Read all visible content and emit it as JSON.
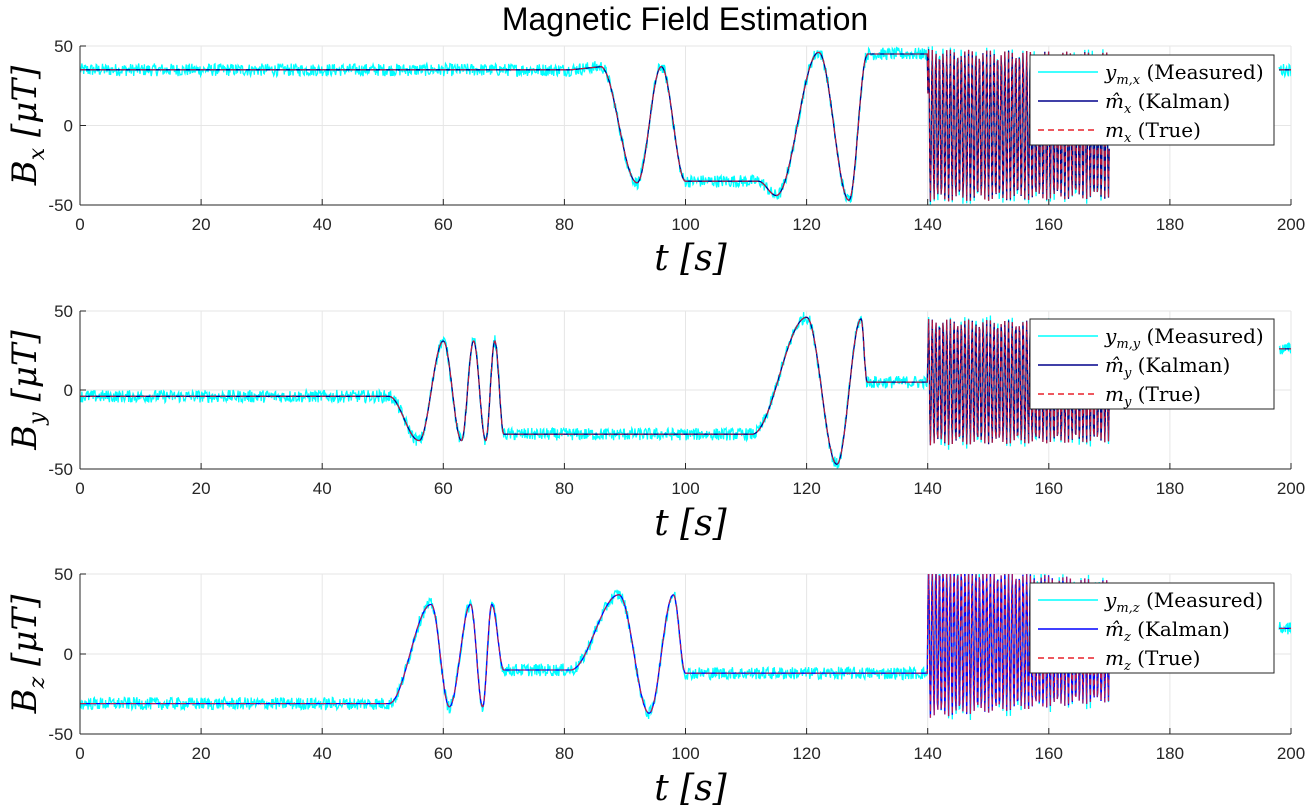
{
  "figure": {
    "title": "Magnetic Field Estimation"
  },
  "colors": {
    "measured": "#00ffff",
    "kalman": "#00008b",
    "true": "#e8202a",
    "grid": "#e6e6e6",
    "axis": "#262626"
  },
  "chart_data": [
    {
      "type": "line",
      "xlabel": "t [s]",
      "ylabel": "B_x [μT]",
      "xlim": [
        0,
        200
      ],
      "ylim": [
        -50,
        50
      ],
      "xticks": [
        0,
        20,
        40,
        60,
        80,
        100,
        120,
        140,
        160,
        180,
        200
      ],
      "yticks": [
        -50,
        0,
        50
      ],
      "grid": true,
      "legend_position": "top-right",
      "legend": [
        {
          "sym": "y",
          "sub": "m,x",
          "label": "(Measured)",
          "style": "cyan-solid"
        },
        {
          "sym": "m̂",
          "sub": "x",
          "label": "(Kalman)",
          "style": "navy-solid"
        },
        {
          "sym": "m",
          "sub": "x",
          "label": "(True)",
          "style": "red-dashed"
        }
      ],
      "series": [
        {
          "name": "y_m,x (Measured)",
          "noise_amplitude": 4,
          "segments": [
            {
              "type": "const",
              "x": [
                0,
                81
              ],
              "value": 35
            },
            {
              "type": "ramp",
              "x": [
                81,
                86
              ],
              "from": 35,
              "to": 37
            },
            {
              "type": "wave",
              "x": [
                86,
                100
              ],
              "points": [
                [
                  86,
                  37
                ],
                [
                  92,
                  -36
                ],
                [
                  96,
                  37
                ],
                [
                  100,
                  -35
                ]
              ]
            },
            {
              "type": "const",
              "x": [
                100,
                112
              ],
              "value": -35
            },
            {
              "type": "wave",
              "x": [
                112,
                130
              ],
              "points": [
                [
                  112,
                  -35
                ],
                [
                  115,
                  -44
                ],
                [
                  122,
                  46
                ],
                [
                  127,
                  -47
                ],
                [
                  130,
                  44
                ]
              ]
            },
            {
              "type": "const",
              "x": [
                130,
                140
              ],
              "value": 45
            },
            {
              "type": "oscillation",
              "x": [
                140,
                170
              ],
              "center": 0,
              "start_amplitude": 48,
              "end_amplitude": 46,
              "period": 0.6
            },
            {
              "type": "const",
              "x": [
                198,
                200
              ],
              "value": 35
            }
          ]
        },
        {
          "name": "m̂_x (Kalman)"
        },
        {
          "name": "m_x (True)"
        }
      ]
    },
    {
      "type": "line",
      "xlabel": "t [s]",
      "ylabel": "B_y [μT]",
      "xlim": [
        0,
        200
      ],
      "ylim": [
        -50,
        50
      ],
      "xticks": [
        0,
        20,
        40,
        60,
        80,
        100,
        120,
        140,
        160,
        180,
        200
      ],
      "yticks": [
        -50,
        0,
        50
      ],
      "grid": true,
      "legend_position": "top-right",
      "legend": [
        {
          "sym": "y",
          "sub": "m,y",
          "label": "(Measured)",
          "style": "cyan-solid"
        },
        {
          "sym": "m̂",
          "sub": "y",
          "label": "(Kalman)",
          "style": "navy-solid"
        },
        {
          "sym": "m",
          "sub": "y",
          "label": "(True)",
          "style": "red-dashed"
        }
      ],
      "series": [
        {
          "name": "y_m,y (Measured)",
          "noise_amplitude": 4,
          "segments": [
            {
              "type": "const",
              "x": [
                0,
                51
              ],
              "value": -4
            },
            {
              "type": "wave",
              "x": [
                51,
                70
              ],
              "points": [
                [
                  51,
                  -4
                ],
                [
                  56,
                  -32
                ],
                [
                  60,
                  31
                ],
                [
                  63,
                  -32
                ],
                [
                  65,
                  31
                ],
                [
                  67,
                  -32
                ],
                [
                  68.5,
                  31
                ],
                [
                  70,
                  -28
                ]
              ]
            },
            {
              "type": "const",
              "x": [
                70,
                111
              ],
              "value": -28
            },
            {
              "type": "wave",
              "x": [
                111,
                130
              ],
              "points": [
                [
                  111,
                  -28
                ],
                [
                  120,
                  46
                ],
                [
                  125,
                  -47
                ],
                [
                  129,
                  45
                ],
                [
                  130,
                  5
                ]
              ]
            },
            {
              "type": "const",
              "x": [
                130,
                140
              ],
              "value": 5
            },
            {
              "type": "oscillation",
              "x": [
                140,
                170
              ],
              "center": 5,
              "start_amplitude": 40,
              "end_amplitude": 38,
              "period": 0.6
            },
            {
              "type": "const",
              "x": [
                198,
                200
              ],
              "value": 26
            }
          ]
        },
        {
          "name": "m̂_y (Kalman)"
        },
        {
          "name": "m_y (True)"
        }
      ]
    },
    {
      "type": "line",
      "xlabel": "t [s]",
      "ylabel": "B_z [μT]",
      "xlim": [
        0,
        200
      ],
      "ylim": [
        -50,
        50
      ],
      "xticks": [
        0,
        20,
        40,
        60,
        80,
        100,
        120,
        140,
        160,
        180,
        200
      ],
      "yticks": [
        -50,
        0,
        50
      ],
      "grid": true,
      "legend_position": "top-right",
      "legend": [
        {
          "sym": "y",
          "sub": "m,z",
          "label": "(Measured)",
          "style": "cyan-solid"
        },
        {
          "sym": "m̂",
          "sub": "z",
          "label": "(Kalman)",
          "style": "blue-solid"
        },
        {
          "sym": "m",
          "sub": "z",
          "label": "(True)",
          "style": "red-dashed"
        }
      ],
      "series": [
        {
          "name": "y_m,z (Measured)",
          "noise_amplitude": 4,
          "segments": [
            {
              "type": "const",
              "x": [
                0,
                51
              ],
              "value": -31
            },
            {
              "type": "wave",
              "x": [
                51,
                70
              ],
              "points": [
                [
                  51,
                  -31
                ],
                [
                  58,
                  31
                ],
                [
                  61,
                  -33
                ],
                [
                  64.5,
                  31
                ],
                [
                  66.5,
                  -33
                ],
                [
                  68,
                  31
                ],
                [
                  70,
                  -10
                ]
              ]
            },
            {
              "type": "const",
              "x": [
                70,
                81
              ],
              "value": -10
            },
            {
              "type": "wave",
              "x": [
                81,
                100
              ],
              "points": [
                [
                  81,
                  -10
                ],
                [
                  89,
                  37
                ],
                [
                  94,
                  -37
                ],
                [
                  98,
                  37
                ],
                [
                  100,
                  -12
                ]
              ]
            },
            {
              "type": "const",
              "x": [
                100,
                140
              ],
              "value": -12
            },
            {
              "type": "oscillation",
              "x": [
                140,
                170
              ],
              "center": 8,
              "start_amplitude": 48,
              "end_amplitude": 38,
              "period": 0.6
            },
            {
              "type": "const",
              "x": [
                198,
                200
              ],
              "value": 16
            }
          ]
        },
        {
          "name": "m̂_z (Kalman)"
        },
        {
          "name": "m_z (True)"
        }
      ]
    }
  ]
}
